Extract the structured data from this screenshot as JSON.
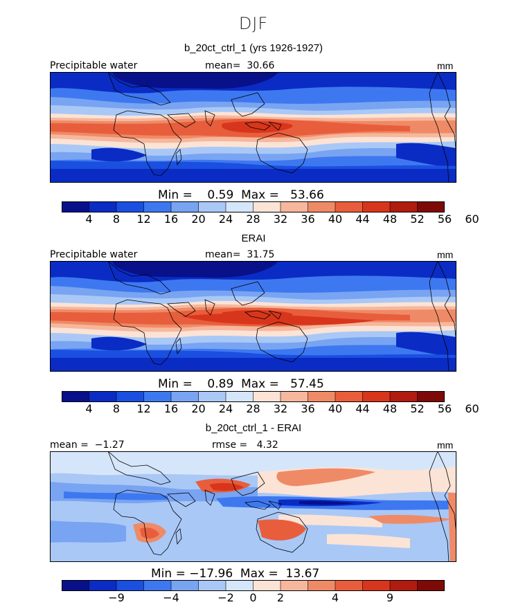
{
  "figure": {
    "season": "DJF"
  },
  "panels": [
    {
      "title": "b_20ct_ctrl_1 (yrs 1926-1927)",
      "top_left": "Precipitable water",
      "center_text": "mean=  30.66",
      "top_right": "mm",
      "minmax": "Min =    0.59  Max =   53.66",
      "colorbar": {
        "colors": [
          "#08108a",
          "#0a2cc4",
          "#1a4fe0",
          "#3e78f0",
          "#78a4f2",
          "#a9c8f6",
          "#d6e6fa",
          "#fbe3d6",
          "#f6b79c",
          "#ef8a66",
          "#e85e3c",
          "#d8361c",
          "#b01c10",
          "#7e0a08"
        ],
        "tick_labels": [
          "4",
          "8",
          "12",
          "16",
          "20",
          "24",
          "28",
          "32",
          "36",
          "40",
          "44",
          "48",
          "52",
          "56",
          "60"
        ]
      }
    },
    {
      "title": "ERAI",
      "top_left": "Precipitable water",
      "center_text": "mean=  31.75",
      "top_right": "mm",
      "minmax": "Min =    0.89  Max =   57.45",
      "colorbar": {
        "colors": [
          "#08108a",
          "#0a2cc4",
          "#1a4fe0",
          "#3e78f0",
          "#78a4f2",
          "#a9c8f6",
          "#d6e6fa",
          "#fbe3d6",
          "#f6b79c",
          "#ef8a66",
          "#e85e3c",
          "#d8361c",
          "#b01c10",
          "#7e0a08"
        ],
        "tick_labels": [
          "4",
          "8",
          "12",
          "16",
          "20",
          "24",
          "28",
          "32",
          "36",
          "40",
          "44",
          "48",
          "52",
          "56",
          "60"
        ]
      }
    },
    {
      "title": "b_20ct_ctrl_1 - ERAI",
      "top_left": "mean =  −1.27",
      "center_text": "rmse =   4.32",
      "top_right": "mm",
      "minmax": "Min = −17.96  Max =  13.67",
      "colorbar": {
        "colors": [
          "#08108a",
          "#0a2cc4",
          "#1a4fe0",
          "#3e78f0",
          "#78a4f2",
          "#a9c8f6",
          "#d6e6fa",
          "#fbe3d6",
          "#f6b79c",
          "#ef8a66",
          "#e85e3c",
          "#d8361c",
          "#b01c10",
          "#7e0a08"
        ],
        "tick_labels": [
          "−9",
          "−4",
          "−2",
          "0",
          "2",
          "4",
          "9"
        ]
      }
    }
  ],
  "chart_data": [
    {
      "type": "heatmap",
      "title": "b_20ct_ctrl_1 (yrs 1926-1927)",
      "variable": "Precipitable water",
      "units": "mm",
      "mean": 30.66,
      "min": 0.59,
      "max": 53.66,
      "levels": [
        4,
        8,
        12,
        16,
        20,
        24,
        28,
        32,
        36,
        40,
        44,
        48,
        52,
        56,
        60
      ]
    },
    {
      "type": "heatmap",
      "title": "ERAI",
      "variable": "Precipitable water",
      "units": "mm",
      "mean": 31.75,
      "min": 0.89,
      "max": 57.45,
      "levels": [
        4,
        8,
        12,
        16,
        20,
        24,
        28,
        32,
        36,
        40,
        44,
        48,
        52,
        56,
        60
      ]
    },
    {
      "type": "heatmap",
      "title": "b_20ct_ctrl_1 - ERAI",
      "units": "mm",
      "mean": -1.27,
      "rmse": 4.32,
      "min": -17.96,
      "max": 13.67,
      "levels": [
        -9,
        -4,
        -2,
        0,
        2,
        4,
        9
      ]
    }
  ]
}
